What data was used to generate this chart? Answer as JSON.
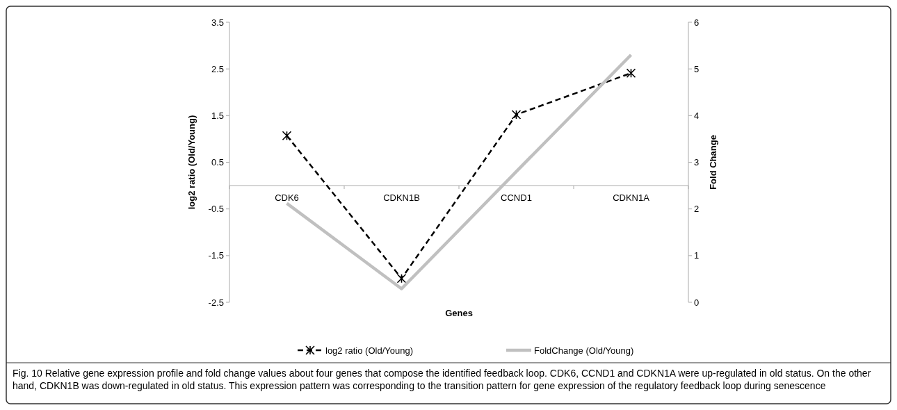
{
  "chart_data": {
    "type": "line",
    "xlabel": "Genes",
    "ylabel": "log2 ratio (Old/Young)",
    "y2label": "Fold Change",
    "categories": [
      "CDK6",
      "CDKN1B",
      "CCND1",
      "CDKN1A"
    ],
    "series": [
      {
        "name": "log2 ratio (Old/Young)",
        "color": "#000000",
        "values": [
          1.07,
          -1.99,
          1.52,
          2.41
        ],
        "marker": "cross",
        "line_style": "dashed"
      },
      {
        "name": "FoldChange (Old/Young)",
        "color": "#c0c0c0",
        "values": [
          2.12,
          0.29,
          2.8,
          5.3
        ],
        "axis": "y2",
        "line_style": "solid",
        "marker": "none"
      }
    ],
    "ylim": [
      -2.5,
      3.5
    ],
    "yticks": [
      -2.5,
      -1.5,
      -0.5,
      0.5,
      1.5,
      2.5,
      3.5
    ],
    "y2lim": [
      0,
      6
    ],
    "y2ticks": [
      0,
      1,
      2,
      3,
      4,
      5,
      6
    ],
    "legend": "bottom",
    "grid": false,
    "annotations": [
      "Fig. 10 Relative gene expression profile and fold change values about four genes that compose the identified feedback loop. CDK6, CCND1 and CDKN1A were up-regulated in old status. On the other hand, CDKN1B was down-regulated in old status. This expression pattern was corresponding to the transition pattern for gene expression of the regulatory feedback loop during senescence"
    ]
  }
}
